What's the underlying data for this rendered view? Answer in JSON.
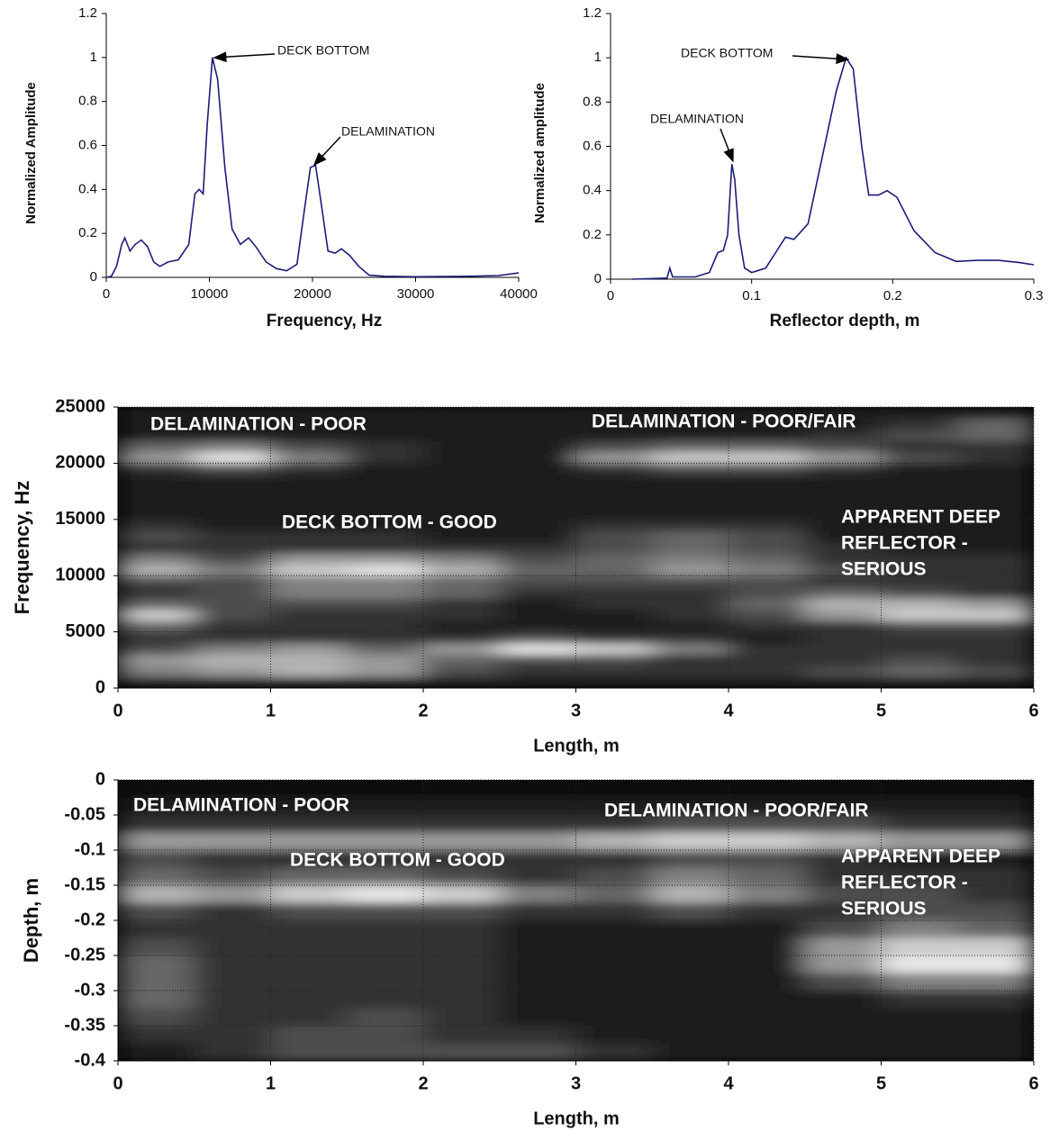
{
  "chart_data": [
    {
      "type": "line",
      "xlabel": "Frequency, Hz",
      "ylabel": "Normalized Amplitude",
      "xlim": [
        0,
        40000
      ],
      "xticks": [
        0,
        10000,
        20000,
        30000,
        40000
      ],
      "ylim": [
        0,
        1.2
      ],
      "yticks": [
        0,
        0.2,
        0.4,
        0.6,
        0.8,
        1,
        1.2
      ],
      "color": "#1c1c78",
      "x": [
        0,
        500,
        1000,
        1500,
        1800,
        2300,
        2800,
        3400,
        4000,
        4600,
        5200,
        6000,
        7000,
        8000,
        8600,
        9000,
        9400,
        9800,
        10300,
        10800,
        11500,
        12200,
        13000,
        13800,
        14500,
        15500,
        16500,
        17500,
        18500,
        19200,
        19800,
        20300,
        20800,
        21500,
        22200,
        22800,
        23600,
        24500,
        25500,
        27000,
        30000,
        35000,
        38000,
        40000
      ],
      "values": [
        0,
        0.005,
        0.05,
        0.15,
        0.18,
        0.12,
        0.15,
        0.17,
        0.14,
        0.07,
        0.05,
        0.07,
        0.08,
        0.15,
        0.38,
        0.4,
        0.38,
        0.7,
        1.0,
        0.9,
        0.5,
        0.22,
        0.15,
        0.18,
        0.14,
        0.07,
        0.04,
        0.03,
        0.06,
        0.3,
        0.5,
        0.51,
        0.35,
        0.12,
        0.11,
        0.13,
        0.1,
        0.05,
        0.01,
        0.005,
        0.003,
        0.005,
        0.008,
        0.02
      ],
      "annotations": [
        "DECK BOTTOM",
        "DELAMINATION"
      ]
    },
    {
      "type": "line",
      "xlabel": "Reflector depth, m",
      "ylabel": "Normalized amplitude",
      "xlim": [
        0,
        0.3
      ],
      "xticks": [
        0,
        0.1,
        0.2,
        0.3
      ],
      "ylim": [
        0,
        1.2
      ],
      "yticks": [
        0,
        0.2,
        0.4,
        0.6,
        0.8,
        1,
        1.2
      ],
      "color": "#1c1c78",
      "x": [
        0.015,
        0.04,
        0.042,
        0.044,
        0.06,
        0.07,
        0.076,
        0.08,
        0.083,
        0.086,
        0.088,
        0.091,
        0.095,
        0.1,
        0.105,
        0.11,
        0.117,
        0.124,
        0.13,
        0.14,
        0.15,
        0.16,
        0.167,
        0.172,
        0.178,
        0.183,
        0.19,
        0.196,
        0.203,
        0.215,
        0.23,
        0.245,
        0.26,
        0.275,
        0.29,
        0.3
      ],
      "values": [
        0,
        0.005,
        0.05,
        0.01,
        0.01,
        0.03,
        0.12,
        0.13,
        0.2,
        0.52,
        0.45,
        0.2,
        0.05,
        0.03,
        0.04,
        0.05,
        0.12,
        0.19,
        0.18,
        0.25,
        0.55,
        0.85,
        1.0,
        0.95,
        0.6,
        0.38,
        0.38,
        0.4,
        0.37,
        0.22,
        0.12,
        0.08,
        0.085,
        0.085,
        0.075,
        0.065
      ],
      "annotations": [
        "DECK BOTTOM",
        "DELAMINATION"
      ]
    },
    {
      "type": "heatmap",
      "xlabel": "Length, m",
      "ylabel": "Frequency, Hz",
      "xlim": [
        0,
        6
      ],
      "xticks": [
        0,
        1,
        2,
        3,
        4,
        5,
        6
      ],
      "ylim": [
        0,
        25000
      ],
      "yticks": [
        0,
        5000,
        10000,
        15000,
        20000,
        25000
      ],
      "grid": true,
      "x": [
        0.25,
        0.75,
        1.25,
        1.75,
        2.25,
        2.75,
        3.25,
        3.75,
        4.25,
        4.75,
        5.25,
        5.75
      ],
      "y": [
        500,
        1500,
        2500,
        3500,
        4500,
        5500,
        6500,
        7500,
        8500,
        9500,
        10500,
        11500,
        12500,
        13500,
        14500,
        15500,
        16500,
        17500,
        18500,
        19500,
        20500,
        21500,
        22500,
        23500,
        24500
      ],
      "values": [
        [
          0.1,
          0.1,
          0.1,
          0.1,
          0.1,
          0.1,
          0.1,
          0.1,
          0.1,
          0.1,
          0.1,
          0.1
        ],
        [
          0.5,
          0.6,
          0.7,
          0.6,
          0.3,
          0.2,
          0.2,
          0.2,
          0.2,
          0.3,
          0.4,
          0.3
        ],
        [
          0.6,
          0.7,
          0.7,
          0.6,
          0.4,
          0.3,
          0.3,
          0.2,
          0.2,
          0.2,
          0.3,
          0.2
        ],
        [
          0.3,
          0.5,
          0.6,
          0.4,
          0.6,
          0.9,
          0.8,
          0.5,
          0.2,
          0.2,
          0.2,
          0.2
        ],
        [
          0.2,
          0.2,
          0.2,
          0.2,
          0.2,
          0.3,
          0.2,
          0.2,
          0.1,
          0.2,
          0.2,
          0.2
        ],
        [
          0.4,
          0.2,
          0.2,
          0.2,
          0.1,
          0.1,
          0.1,
          0.1,
          0.2,
          0.2,
          0.3,
          0.3
        ],
        [
          0.8,
          0.3,
          0.2,
          0.2,
          0.2,
          0.1,
          0.1,
          0.2,
          0.3,
          0.6,
          0.8,
          0.8
        ],
        [
          0.4,
          0.3,
          0.3,
          0.3,
          0.2,
          0.1,
          0.2,
          0.2,
          0.4,
          0.7,
          0.7,
          0.6
        ],
        [
          0.2,
          0.3,
          0.5,
          0.5,
          0.4,
          0.2,
          0.2,
          0.2,
          0.3,
          0.4,
          0.3,
          0.2
        ],
        [
          0.3,
          0.3,
          0.5,
          0.5,
          0.4,
          0.3,
          0.3,
          0.3,
          0.3,
          0.2,
          0.2,
          0.2
        ],
        [
          0.7,
          0.5,
          0.8,
          0.9,
          0.7,
          0.4,
          0.4,
          0.6,
          0.5,
          0.3,
          0.2,
          0.2
        ],
        [
          0.5,
          0.3,
          0.6,
          0.6,
          0.5,
          0.3,
          0.4,
          0.5,
          0.4,
          0.2,
          0.2,
          0.2
        ],
        [
          0.2,
          0.2,
          0.2,
          0.2,
          0.2,
          0.2,
          0.3,
          0.4,
          0.3,
          0.2,
          0.1,
          0.1
        ],
        [
          0.3,
          0.2,
          0.2,
          0.2,
          0.1,
          0.1,
          0.3,
          0.4,
          0.3,
          0.1,
          0.1,
          0.1
        ],
        [
          0.2,
          0.1,
          0.1,
          0.1,
          0.1,
          0.1,
          0.2,
          0.2,
          0.2,
          0.1,
          0.1,
          0.1
        ],
        [
          0.1,
          0.1,
          0.1,
          0.1,
          0.1,
          0.1,
          0.1,
          0.1,
          0.1,
          0.1,
          0.1,
          0.1
        ],
        [
          0.1,
          0.1,
          0.1,
          0.1,
          0.1,
          0.1,
          0.1,
          0.1,
          0.1,
          0.1,
          0.1,
          0.1
        ],
        [
          0.1,
          0.1,
          0.1,
          0.1,
          0.1,
          0.1,
          0.1,
          0.1,
          0.1,
          0.1,
          0.1,
          0.1
        ],
        [
          0.1,
          0.1,
          0.1,
          0.1,
          0.1,
          0.1,
          0.1,
          0.1,
          0.1,
          0.1,
          0.1,
          0.1
        ],
        [
          0.2,
          0.3,
          0.2,
          0.1,
          0.1,
          0.1,
          0.2,
          0.3,
          0.3,
          0.2,
          0.1,
          0.1
        ],
        [
          0.6,
          0.9,
          0.5,
          0.2,
          0.1,
          0.1,
          0.6,
          0.8,
          0.8,
          0.6,
          0.3,
          0.2
        ],
        [
          0.4,
          0.5,
          0.3,
          0.2,
          0.1,
          0.1,
          0.3,
          0.4,
          0.4,
          0.3,
          0.2,
          0.2
        ],
        [
          0.1,
          0.1,
          0.1,
          0.1,
          0.1,
          0.1,
          0.1,
          0.1,
          0.1,
          0.2,
          0.3,
          0.4
        ],
        [
          0.1,
          0.1,
          0.1,
          0.1,
          0.1,
          0.1,
          0.1,
          0.1,
          0.1,
          0.1,
          0.2,
          0.4
        ],
        [
          0.1,
          0.1,
          0.1,
          0.1,
          0.1,
          0.1,
          0.1,
          0.1,
          0.1,
          0.1,
          0.1,
          0.1
        ]
      ],
      "annotations": [
        "DELAMINATION - POOR",
        "DELAMINATION - POOR/FAIR",
        "DECK BOTTOM - GOOD",
        "APPARENT DEEP",
        "REFLECTOR -",
        "SERIOUS"
      ]
    },
    {
      "type": "heatmap",
      "xlabel": "Length, m",
      "ylabel": "Depth, m",
      "xlim": [
        0,
        6
      ],
      "xticks": [
        0,
        1,
        2,
        3,
        4,
        5,
        6
      ],
      "ylim": [
        -0.4,
        0
      ],
      "yticks": [
        0,
        -0.05,
        -0.1,
        -0.15,
        -0.2,
        -0.25,
        -0.3,
        -0.35,
        -0.4
      ],
      "grid": true,
      "x": [
        0.25,
        0.75,
        1.25,
        1.75,
        2.25,
        2.75,
        3.25,
        3.75,
        4.25,
        4.75,
        5.25,
        5.75
      ],
      "y": [
        -0.0125,
        -0.0375,
        -0.0625,
        -0.0875,
        -0.1125,
        -0.1375,
        -0.1625,
        -0.1875,
        -0.2125,
        -0.2375,
        -0.2625,
        -0.2875,
        -0.3125,
        -0.3375,
        -0.3625,
        -0.3875
      ],
      "values": [
        [
          0.05,
          0.05,
          0.05,
          0.05,
          0.05,
          0.05,
          0.05,
          0.05,
          0.05,
          0.05,
          0.05,
          0.05
        ],
        [
          0.1,
          0.1,
          0.1,
          0.1,
          0.1,
          0.1,
          0.1,
          0.1,
          0.1,
          0.1,
          0.1,
          0.1
        ],
        [
          0.2,
          0.2,
          0.2,
          0.2,
          0.2,
          0.2,
          0.2,
          0.3,
          0.3,
          0.3,
          0.2,
          0.2
        ],
        [
          0.6,
          0.6,
          0.6,
          0.6,
          0.6,
          0.6,
          0.7,
          0.8,
          0.8,
          0.7,
          0.6,
          0.6
        ],
        [
          0.3,
          0.2,
          0.2,
          0.2,
          0.2,
          0.2,
          0.2,
          0.3,
          0.3,
          0.2,
          0.1,
          0.1
        ],
        [
          0.4,
          0.3,
          0.4,
          0.4,
          0.3,
          0.2,
          0.3,
          0.5,
          0.4,
          0.2,
          0.2,
          0.2
        ],
        [
          0.7,
          0.6,
          0.8,
          0.9,
          0.8,
          0.5,
          0.4,
          0.7,
          0.5,
          0.3,
          0.3,
          0.2
        ],
        [
          0.3,
          0.2,
          0.3,
          0.3,
          0.3,
          0.2,
          0.2,
          0.3,
          0.2,
          0.2,
          0.3,
          0.3
        ],
        [
          0.2,
          0.2,
          0.2,
          0.2,
          0.2,
          0.1,
          0.1,
          0.1,
          0.1,
          0.3,
          0.5,
          0.4
        ],
        [
          0.3,
          0.2,
          0.2,
          0.2,
          0.2,
          0.1,
          0.1,
          0.1,
          0.1,
          0.6,
          0.8,
          0.8
        ],
        [
          0.4,
          0.2,
          0.2,
          0.2,
          0.2,
          0.1,
          0.1,
          0.1,
          0.1,
          0.6,
          0.9,
          0.9
        ],
        [
          0.4,
          0.2,
          0.2,
          0.2,
          0.2,
          0.1,
          0.1,
          0.1,
          0.1,
          0.3,
          0.5,
          0.5
        ],
        [
          0.4,
          0.2,
          0.2,
          0.2,
          0.2,
          0.1,
          0.1,
          0.1,
          0.1,
          0.1,
          0.2,
          0.2
        ],
        [
          0.3,
          0.2,
          0.2,
          0.3,
          0.2,
          0.1,
          0.1,
          0.1,
          0.1,
          0.1,
          0.1,
          0.1
        ],
        [
          0.2,
          0.2,
          0.3,
          0.3,
          0.2,
          0.2,
          0.1,
          0.1,
          0.1,
          0.1,
          0.1,
          0.1
        ],
        [
          0.1,
          0.2,
          0.3,
          0.3,
          0.3,
          0.3,
          0.2,
          0.1,
          0.1,
          0.1,
          0.1,
          0.1
        ]
      ],
      "annotations": [
        "DELAMINATION - POOR",
        "DELAMINATION - POOR/FAIR",
        "DECK BOTTOM - GOOD",
        "APPARENT DEEP",
        "REFLECTOR -",
        "SERIOUS"
      ]
    }
  ]
}
